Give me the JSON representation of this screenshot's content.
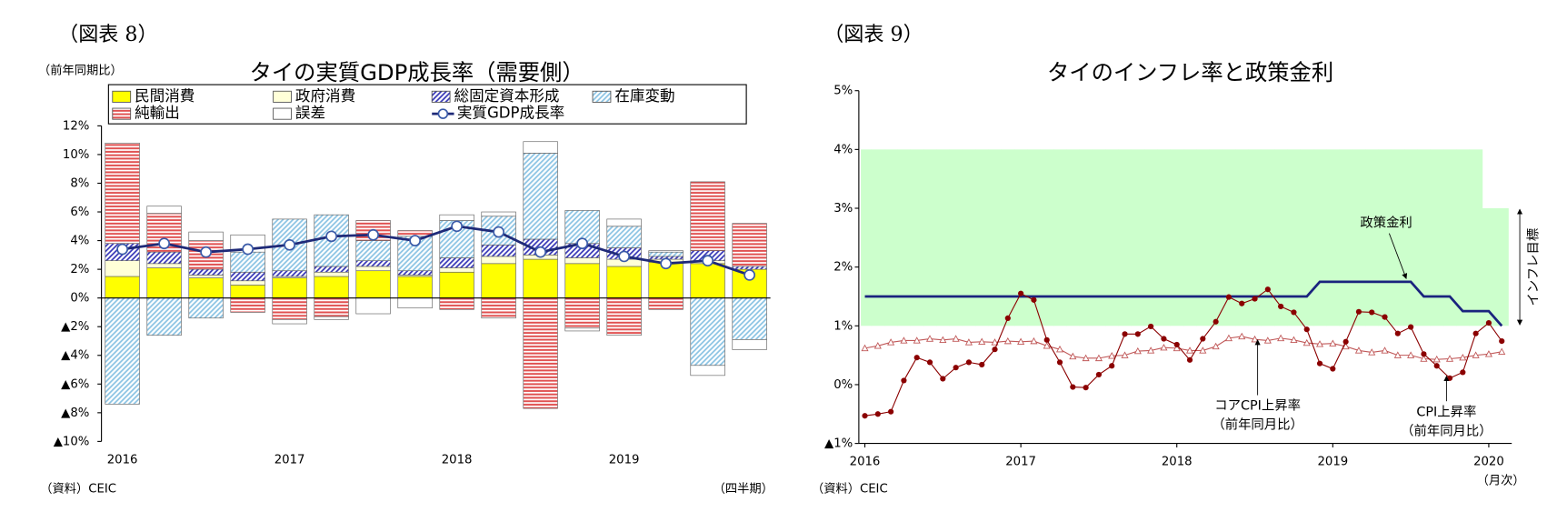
{
  "chart_data": [
    {
      "type": "bar",
      "stacked": true,
      "figure_label": "（図表 8）",
      "title": "タイの実質GDP成長率（需要側）",
      "ylabel": "（前年同期比）",
      "xlabel": "（四半期）",
      "source": "（資料）CEIC",
      "categories": [
        "2016",
        null,
        null,
        null,
        "2017",
        null,
        null,
        null,
        "2018",
        null,
        null,
        null,
        "2019",
        null,
        null,
        null
      ],
      "ylim": [
        -10,
        12
      ],
      "yticks": [
        {
          "value": 12,
          "label": "12%"
        },
        {
          "value": 10,
          "label": "10%"
        },
        {
          "value": 8,
          "label": "8%"
        },
        {
          "value": 6,
          "label": "6%"
        },
        {
          "value": 4,
          "label": "4%"
        },
        {
          "value": 2,
          "label": "2%"
        },
        {
          "value": 0,
          "label": "0%"
        },
        {
          "value": -2,
          "label": "▲2%"
        },
        {
          "value": -4,
          "label": "▲4%"
        },
        {
          "value": -6,
          "label": "▲6%"
        },
        {
          "value": -8,
          "label": "▲8%"
        },
        {
          "value": -10,
          "label": "▲10%"
        }
      ],
      "series": [
        {
          "name": "民間消費",
          "color": "#ffff00",
          "values": [
            1.5,
            2.1,
            1.4,
            0.9,
            1.4,
            1.5,
            1.9,
            1.5,
            1.8,
            2.4,
            2.7,
            2.4,
            2.2,
            2.5,
            2.4,
            2.0
          ]
        },
        {
          "name": "政府消費",
          "color": "#ffffd8",
          "values": [
            1.1,
            0.3,
            0.2,
            0.3,
            0.1,
            0.3,
            0.3,
            0.1,
            0.3,
            0.5,
            0.3,
            0.4,
            0.5,
            0.2,
            0.2,
            0.0
          ]
        },
        {
          "name": "総固定資本形成",
          "color": "#3a3ab8",
          "pattern": "diagonal",
          "values": [
            1.2,
            0.8,
            0.4,
            0.6,
            0.4,
            0.4,
            0.4,
            0.3,
            0.7,
            0.8,
            1.1,
            1.0,
            0.8,
            0.2,
            0.7,
            0.2
          ]
        },
        {
          "name": "在庫変動",
          "color": "#8cc4e4",
          "pattern": "diagonal",
          "values": [
            -7.4,
            -2.6,
            -1.4,
            1.4,
            3.6,
            3.6,
            1.4,
            2.4,
            2.6,
            2.0,
            6.0,
            2.3,
            1.5,
            0.3,
            -4.7,
            -2.9
          ]
        },
        {
          "name": "純輸出",
          "color": "#e05050",
          "pattern": "horizontal",
          "values": [
            7.0,
            2.7,
            2.0,
            -1.0,
            -1.5,
            -1.3,
            1.4,
            0.4,
            -0.8,
            -1.4,
            -7.7,
            -2.1,
            -2.6,
            -0.8,
            4.8,
            3.0
          ]
        },
        {
          "name": "誤差",
          "color": "#ffffff",
          "values": [
            0.0,
            0.5,
            0.6,
            1.2,
            -0.3,
            -0.2,
            -1.1,
            -0.7,
            0.4,
            0.3,
            0.8,
            -0.2,
            0.5,
            0.1,
            -0.7,
            -0.7
          ]
        },
        {
          "name": "実質GDP成長率",
          "type": "line",
          "color": "#1f2a78",
          "values": [
            3.4,
            3.8,
            3.2,
            3.4,
            3.7,
            4.3,
            4.4,
            4.0,
            5.0,
            4.6,
            3.2,
            3.8,
            2.9,
            2.4,
            2.6,
            1.6
          ]
        }
      ]
    },
    {
      "type": "line",
      "figure_label": "（図表 9）",
      "title": "タイのインフレ率と政策金利",
      "xlabel": "（月次）",
      "source": "（資料）CEIC",
      "categories": [
        "2016",
        null,
        null,
        null,
        null,
        null,
        null,
        null,
        null,
        null,
        null,
        null,
        "2017",
        null,
        null,
        null,
        null,
        null,
        null,
        null,
        null,
        null,
        null,
        null,
        "2018",
        null,
        null,
        null,
        null,
        null,
        null,
        null,
        null,
        null,
        null,
        null,
        "2019",
        null,
        null,
        null,
        null,
        null,
        null,
        null,
        null,
        null,
        null,
        null,
        "2020",
        null
      ],
      "ylim": [
        -1,
        5
      ],
      "yticks": [
        {
          "value": 5,
          "label": "5%"
        },
        {
          "value": 4,
          "label": "4%"
        },
        {
          "value": 3,
          "label": "3%"
        },
        {
          "value": 2,
          "label": "2%"
        },
        {
          "value": 1,
          "label": "1%"
        },
        {
          "value": 0,
          "label": "0%"
        },
        {
          "value": -1,
          "label": "▲1%"
        }
      ],
      "band": {
        "name": "インフレ目標",
        "color": "#ccffcc",
        "upper": [
          4,
          4,
          4,
          4,
          4,
          4,
          4,
          4,
          4,
          4,
          4,
          4,
          4,
          4,
          4,
          4,
          4,
          4,
          4,
          4,
          4,
          4,
          4,
          4,
          4,
          4,
          4,
          4,
          4,
          4,
          4,
          4,
          4,
          4,
          4,
          4,
          4,
          4,
          4,
          4,
          4,
          4,
          4,
          4,
          4,
          4,
          4,
          4,
          3,
          3
        ],
        "lower": [
          1,
          1,
          1,
          1,
          1,
          1,
          1,
          1,
          1,
          1,
          1,
          1,
          1,
          1,
          1,
          1,
          1,
          1,
          1,
          1,
          1,
          1,
          1,
          1,
          1,
          1,
          1,
          1,
          1,
          1,
          1,
          1,
          1,
          1,
          1,
          1,
          1,
          1,
          1,
          1,
          1,
          1,
          1,
          1,
          1,
          1,
          1,
          1,
          1,
          1
        ]
      },
      "series": [
        {
          "name": "政策金利",
          "color": "#1a237e",
          "values": [
            1.5,
            1.5,
            1.5,
            1.5,
            1.5,
            1.5,
            1.5,
            1.5,
            1.5,
            1.5,
            1.5,
            1.5,
            1.5,
            1.5,
            1.5,
            1.5,
            1.5,
            1.5,
            1.5,
            1.5,
            1.5,
            1.5,
            1.5,
            1.5,
            1.5,
            1.5,
            1.5,
            1.5,
            1.5,
            1.5,
            1.5,
            1.5,
            1.5,
            1.5,
            1.5,
            1.75,
            1.75,
            1.75,
            1.75,
            1.75,
            1.75,
            1.75,
            1.75,
            1.5,
            1.5,
            1.5,
            1.25,
            1.25,
            1.25,
            1.0
          ]
        },
        {
          "name": "コアCPI上昇率",
          "note": "（前年同月比）",
          "color": "#c05858",
          "marker": "triangle",
          "values": [
            0.62,
            0.66,
            0.72,
            0.75,
            0.75,
            0.78,
            0.76,
            0.78,
            0.72,
            0.73,
            0.72,
            0.74,
            0.73,
            0.74,
            0.66,
            0.6,
            0.48,
            0.45,
            0.45,
            0.49,
            0.5,
            0.57,
            0.58,
            0.63,
            0.62,
            0.58,
            0.58,
            0.65,
            0.79,
            0.82,
            0.77,
            0.75,
            0.79,
            0.76,
            0.71,
            0.69,
            0.7,
            0.65,
            0.58,
            0.55,
            0.58,
            0.5,
            0.5,
            0.44,
            0.43,
            0.44,
            0.46,
            0.5,
            0.52,
            0.56
          ]
        },
        {
          "name": "CPI上昇率",
          "note": "（前年同月比）",
          "color": "#8b0000",
          "marker": "circle",
          "values": [
            -0.53,
            -0.5,
            -0.46,
            0.07,
            0.46,
            0.38,
            0.1,
            0.29,
            0.38,
            0.34,
            0.6,
            1.13,
            1.55,
            1.44,
            0.76,
            0.38,
            -0.04,
            -0.05,
            0.17,
            0.32,
            0.86,
            0.86,
            0.99,
            0.78,
            0.68,
            0.42,
            0.78,
            1.07,
            1.49,
            1.38,
            1.46,
            1.62,
            1.33,
            1.23,
            0.94,
            0.36,
            0.27,
            0.73,
            1.24,
            1.23,
            1.15,
            0.87,
            0.98,
            0.52,
            0.32,
            0.11,
            0.21,
            0.87,
            1.05,
            0.74
          ]
        }
      ]
    }
  ]
}
